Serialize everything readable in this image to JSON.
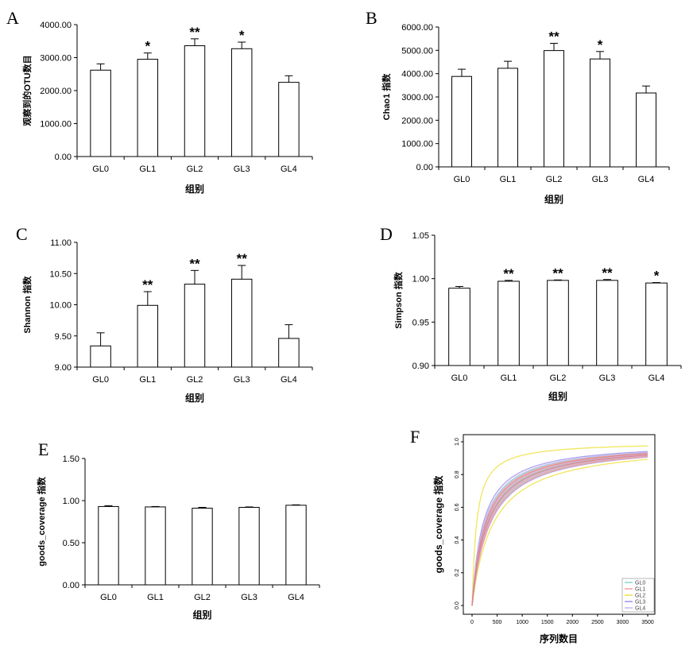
{
  "chart_data": [
    {
      "panel": "A",
      "type": "bar",
      "categories": [
        "GL0",
        "GL1",
        "GL2",
        "GL3",
        "GL4"
      ],
      "values": [
        2620,
        2950,
        3360,
        3270,
        2250
      ],
      "errors": [
        190,
        190,
        210,
        200,
        200
      ],
      "significance": [
        "",
        "*",
        "**",
        "*",
        ""
      ],
      "xlabel": "组别",
      "ylabel": "观察到的OTU数目",
      "ylim": [
        0,
        4000
      ],
      "yticks": [
        "0.00",
        "1000.00",
        "2000.00",
        "3000.00",
        "4000.00"
      ]
    },
    {
      "panel": "B",
      "type": "bar",
      "categories": [
        "GL0",
        "GL1",
        "GL2",
        "GL3",
        "GL4"
      ],
      "values": [
        3880,
        4230,
        4990,
        4630,
        3170
      ],
      "errors": [
        310,
        300,
        310,
        320,
        300
      ],
      "significance": [
        "",
        "",
        "**",
        "*",
        ""
      ],
      "xlabel": "组别",
      "ylabel": "Chao1 指数",
      "ylim": [
        0,
        6000
      ],
      "yticks": [
        "0.00",
        "1000.00",
        "2000.00",
        "3000.00",
        "4000.00",
        "5000.00",
        "6000.00"
      ]
    },
    {
      "panel": "C",
      "type": "bar",
      "categories": [
        "GL0",
        "GL1",
        "GL2",
        "GL3",
        "GL4"
      ],
      "values": [
        9.34,
        9.99,
        10.33,
        10.41,
        9.46
      ],
      "errors": [
        0.21,
        0.22,
        0.22,
        0.22,
        0.22
      ],
      "significance": [
        "",
        "**",
        "**",
        "**",
        ""
      ],
      "xlabel": "组别",
      "ylabel": "Shannon 指数",
      "ylim": [
        9,
        11
      ],
      "yticks": [
        "9.00",
        "9.50",
        "10.00",
        "10.50",
        "11.00"
      ]
    },
    {
      "panel": "D",
      "type": "bar",
      "categories": [
        "GL0",
        "GL1",
        "GL2",
        "GL3",
        "GL4"
      ],
      "values": [
        0.989,
        0.997,
        0.998,
        0.998,
        0.995
      ],
      "errors": [
        0.002,
        0.001,
        0.0005,
        0.001,
        0.0005
      ],
      "significance": [
        "",
        "**",
        "**",
        "**",
        "*"
      ],
      "xlabel": "组别",
      "ylabel": "Simpson 指数",
      "ylim": [
        0.9,
        1.05
      ],
      "yticks": [
        "0.90",
        "0.95",
        "1.00",
        "1.05"
      ]
    },
    {
      "panel": "E",
      "type": "bar",
      "categories": [
        "GL0",
        "GL1",
        "GL2",
        "GL3",
        "GL4"
      ],
      "values": [
        0.93,
        0.925,
        0.91,
        0.92,
        0.945
      ],
      "errors": [
        0.01,
        0.005,
        0.01,
        0.005,
        0.005
      ],
      "significance": [
        "",
        "",
        "",
        "",
        ""
      ],
      "xlabel": "组别",
      "ylabel": "goods_coverage 指数",
      "ylim": [
        0,
        1.5
      ],
      "yticks": [
        "0.00",
        "0.50",
        "1.00",
        "1.50"
      ]
    },
    {
      "panel": "F",
      "type": "line",
      "xlabel": "序列数目",
      "ylabel": "goods_coverage 指数",
      "xlim": [
        0,
        3500
      ],
      "ylim": [
        0,
        1.0
      ],
      "xticks": [
        "0",
        "500",
        "1000",
        "1500",
        "2000",
        "2500",
        "3000",
        "3500"
      ],
      "yticks": [
        "0.0",
        "0.2",
        "0.4",
        "0.6",
        "0.8",
        "1.0"
      ],
      "legend": [
        "GL0",
        "GL1",
        "GL2",
        "GL3",
        "GL4"
      ],
      "legend_colors": [
        "#7fd8c8",
        "#f4a0a0",
        "#f0e040",
        "#a090e8",
        "#c0b8f0"
      ],
      "series": [
        {
          "color": "#f0e040",
          "k": [
            90,
            300,
            420
          ]
        },
        {
          "color": "#a090e8",
          "k": [
            220,
            300,
            360
          ]
        },
        {
          "color": "#7fd8c8",
          "k": [
            250,
            300,
            340
          ]
        },
        {
          "color": "#f4a0a0",
          "k": [
            260,
            290,
            330,
            350
          ]
        },
        {
          "color": "#c0b8f0",
          "k": [
            240,
            280,
            320
          ]
        }
      ]
    }
  ]
}
